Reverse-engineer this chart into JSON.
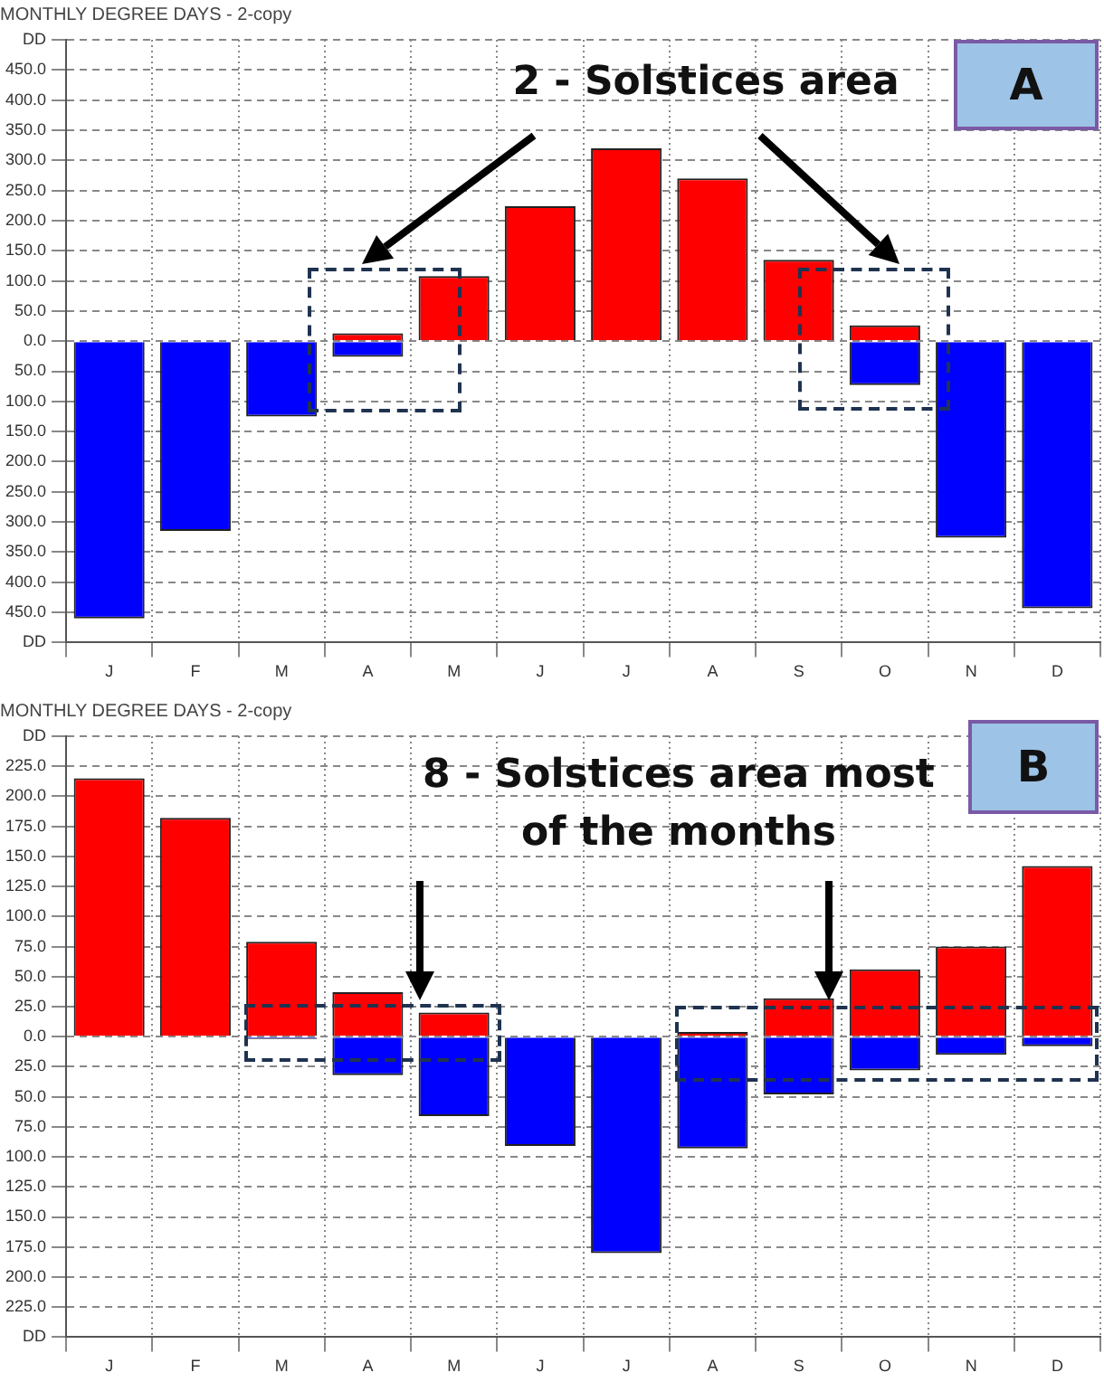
{
  "chart_data": [
    {
      "type": "bar",
      "title": "MONTHLY DEGREE DAYS - 2-copy",
      "categories": [
        "J",
        "F",
        "M",
        "A",
        "M",
        "J",
        "J",
        "A",
        "S",
        "O",
        "N",
        "D"
      ],
      "stacked": true,
      "series": [
        {
          "color": "#ff0000",
          "values": [
            0,
            0,
            0,
            13,
            108,
            224,
            320,
            270,
            135,
            26,
            0,
            0
          ]
        },
        {
          "color": "#0000ff",
          "values": [
            -460,
            -315,
            -125,
            -26,
            0,
            0,
            0,
            0,
            0,
            -73,
            -326,
            -443
          ]
        }
      ],
      "ylim": [
        -500,
        500
      ],
      "yticks": [
        {
          "value": -500,
          "label": "DD"
        },
        {
          "value": -450,
          "label": "450.0"
        },
        {
          "value": -400,
          "label": "400.0"
        },
        {
          "value": -350,
          "label": "350.0"
        },
        {
          "value": -300,
          "label": "300.0"
        },
        {
          "value": -250,
          "label": "250.0"
        },
        {
          "value": -200,
          "label": "200.0"
        },
        {
          "value": -150,
          "label": "150.0"
        },
        {
          "value": -100,
          "label": "100.0"
        },
        {
          "value": -50,
          "label": "50.0"
        },
        {
          "value": 0,
          "label": "0.0"
        },
        {
          "value": 50,
          "label": "50.0"
        },
        {
          "value": 100,
          "label": "100.0"
        },
        {
          "value": 150,
          "label": "150.0"
        },
        {
          "value": 200,
          "label": "200.0"
        },
        {
          "value": 250,
          "label": "250.0"
        },
        {
          "value": 300,
          "label": "300.0"
        },
        {
          "value": 350,
          "label": "350.0"
        },
        {
          "value": 400,
          "label": "400.0"
        },
        {
          "value": 450,
          "label": "450.0"
        },
        {
          "value": 500,
          "label": "DD"
        }
      ],
      "grid": true,
      "legend": false,
      "annotations": [
        "2 - Solstices area",
        "A"
      ]
    },
    {
      "type": "bar",
      "title": "MONTHLY DEGREE DAYS - 2-copy",
      "categories": [
        "J",
        "F",
        "M",
        "A",
        "M",
        "J",
        "J",
        "A",
        "S",
        "O",
        "N",
        "D"
      ],
      "stacked": true,
      "series": [
        {
          "color": "#ff0000",
          "values": [
            215,
            182,
            79,
            37,
            20,
            0,
            0,
            4,
            32,
            56,
            75,
            142
          ]
        },
        {
          "color": "#0000ff",
          "values": [
            0,
            0,
            -2,
            -32,
            -66,
            -91,
            -180,
            -93,
            -48,
            -28,
            -15,
            -8
          ]
        }
      ],
      "ylim": [
        -250,
        250
      ],
      "yticks": [
        {
          "value": -250,
          "label": "DD"
        },
        {
          "value": -225,
          "label": "225.0"
        },
        {
          "value": -200,
          "label": "200.0"
        },
        {
          "value": -175,
          "label": "175.0"
        },
        {
          "value": -150,
          "label": "150.0"
        },
        {
          "value": -125,
          "label": "125.0"
        },
        {
          "value": -100,
          "label": "100.0"
        },
        {
          "value": -75,
          "label": "75.0"
        },
        {
          "value": -50,
          "label": "50.0"
        },
        {
          "value": -25,
          "label": "25.0"
        },
        {
          "value": 0,
          "label": "0.0"
        },
        {
          "value": 25,
          "label": "25.0"
        },
        {
          "value": 50,
          "label": "50.0"
        },
        {
          "value": 75,
          "label": "75.0"
        },
        {
          "value": 100,
          "label": "100.0"
        },
        {
          "value": 125,
          "label": "125.0"
        },
        {
          "value": 150,
          "label": "150.0"
        },
        {
          "value": 175,
          "label": "175.0"
        },
        {
          "value": 200,
          "label": "200.0"
        },
        {
          "value": 225,
          "label": "225.0"
        },
        {
          "value": 250,
          "label": "DD"
        }
      ],
      "grid": true,
      "legend": false,
      "annotations": [
        "8 - Solstices area most of the months",
        "B"
      ]
    }
  ]
}
